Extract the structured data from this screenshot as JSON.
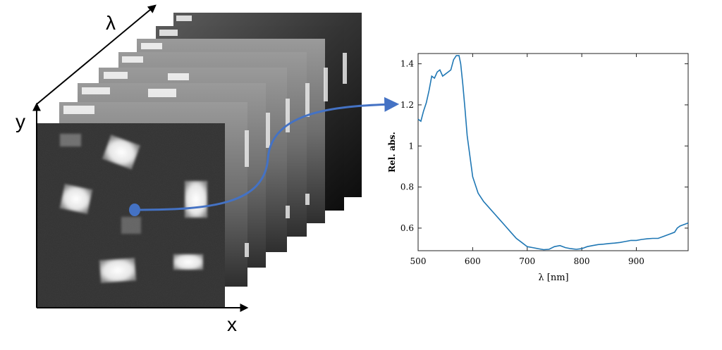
{
  "cube": {
    "axis_lambda": "λ",
    "axis_y": "y",
    "axis_x": "x",
    "frame_count": 9
  },
  "colors": {
    "arrow": "#4472c4",
    "spectrum_line": "#1f77b4",
    "marker": "#4472c4"
  },
  "chart_data": {
    "type": "line",
    "xlabel": "λ [nm]",
    "ylabel": "Rel. abs.",
    "xlim": [
      500,
      995
    ],
    "ylim": [
      0.49,
      1.45
    ],
    "xticks": [
      500,
      600,
      700,
      800,
      900
    ],
    "yticks": [
      0.6,
      0.8,
      1,
      1.2,
      1.4
    ],
    "ytick_labels": [
      "0.6",
      "0.8",
      "1",
      "1.2",
      "1.4"
    ],
    "grid": false,
    "series": [
      {
        "x": [
          500,
          505,
          510,
          515,
          520,
          525,
          530,
          535,
          540,
          545,
          550,
          555,
          560,
          565,
          570,
          575,
          578,
          582,
          586,
          590,
          595,
          600,
          610,
          620,
          630,
          640,
          650,
          660,
          670,
          680,
          690,
          700,
          710,
          720,
          730,
          740,
          750,
          760,
          770,
          780,
          790,
          800,
          810,
          820,
          830,
          840,
          850,
          860,
          870,
          880,
          890,
          900,
          910,
          920,
          930,
          940,
          950,
          960,
          970,
          975,
          980,
          985,
          990,
          995
        ],
        "y": [
          1.13,
          1.12,
          1.17,
          1.21,
          1.27,
          1.34,
          1.33,
          1.36,
          1.37,
          1.34,
          1.35,
          1.36,
          1.37,
          1.42,
          1.44,
          1.44,
          1.4,
          1.3,
          1.18,
          1.05,
          0.95,
          0.85,
          0.77,
          0.73,
          0.7,
          0.67,
          0.64,
          0.61,
          0.58,
          0.55,
          0.53,
          0.51,
          0.505,
          0.5,
          0.495,
          0.497,
          0.51,
          0.515,
          0.505,
          0.5,
          0.497,
          0.5,
          0.51,
          0.515,
          0.52,
          0.522,
          0.525,
          0.527,
          0.53,
          0.535,
          0.54,
          0.54,
          0.545,
          0.548,
          0.55,
          0.55,
          0.56,
          0.57,
          0.58,
          0.6,
          0.61,
          0.615,
          0.62,
          0.625
        ]
      }
    ]
  }
}
